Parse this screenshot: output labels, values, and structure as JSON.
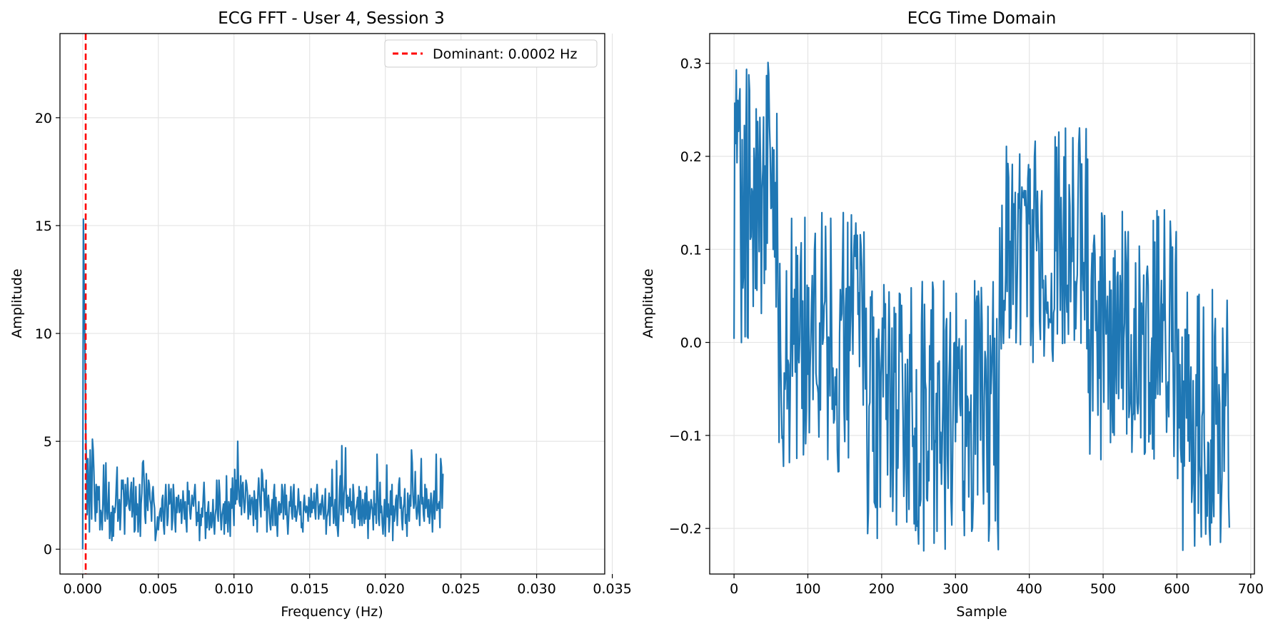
{
  "chart_data": [
    {
      "type": "line",
      "title": "ECG FFT - User 4, Session 3",
      "xlabel": "Frequency (Hz)",
      "ylabel": "Amplitude",
      "xlim": [
        -0.0015,
        0.0345
      ],
      "ylim": [
        -1.15,
        23.9
      ],
      "xticks": [
        0.0,
        0.005,
        0.01,
        0.015,
        0.02,
        0.025,
        0.03,
        0.035
      ],
      "xtick_labels": [
        "0.000",
        "0.005",
        "0.010",
        "0.015",
        "0.020",
        "0.025",
        "0.030",
        "0.035"
      ],
      "yticks": [
        0,
        5,
        10,
        15,
        20
      ],
      "ytick_labels": [
        "0",
        "5",
        "10",
        "15",
        "20"
      ],
      "grid": true,
      "legend": {
        "placement": "top-right",
        "entries": [
          {
            "label": "Dominant: 0.0002 Hz",
            "color": "#ff0000",
            "style": "dashed"
          }
        ]
      },
      "vline": {
        "x": 0.0002,
        "color": "#ff0000",
        "style": "dashed"
      },
      "series": [
        {
          "color": "#1f77b4",
          "x_start": 0.0,
          "x_step": 4.95e-05,
          "values": [
            0.0,
            15.3,
            11.8,
            9.6,
            5.7,
            3.9,
            1.6,
            4.2,
            2.9,
            0.8,
            4.6,
            3.1,
            1.4,
            5.1,
            4.6,
            3.6,
            2.1,
            1.3,
            3.0,
            1.7,
            2.9,
            2.3,
            2.9,
            0.9,
            1.8,
            1.6,
            0.9,
            2.2,
            3.9,
            2.1,
            1.3,
            4.0,
            1.9,
            1.4,
            2.1,
            3.1,
            0.5,
            1.2,
            1.7,
            0.4,
            2.0,
            0.6,
            1.9,
            1.7,
            2.1,
            3.0,
            3.8,
            1.3,
            1.6,
            2.3,
            0.9,
            1.7,
            3.2,
            2.8,
            3.2,
            2.3,
            0.7,
            3.0,
            2.0,
            2.1,
            3.3,
            2.5,
            1.9,
            1.8,
            2.7,
            3.1,
            1.5,
            2.0,
            3.3,
            0.8,
            0.9,
            2.9,
            1.6,
            2.1,
            0.8,
            1.6,
            3.0,
            0.6,
            2.1,
            2.6,
            4.0,
            4.1,
            3.2,
            1.6,
            1.2,
            3.5,
            2.2,
            1.8,
            3.2,
            3.0,
            2.3,
            2.1,
            1.3,
            2.6,
            2.9,
            2.2,
            1.9,
            0.4,
            0.7,
            1.0,
            1.5,
            0.9,
            1.4,
            1.7,
            1.9,
            1.3,
            2.3,
            2.5,
            1.1,
            0.7,
            2.3,
            3.0,
            2.0,
            1.1,
            1.5,
            3.0,
            2.1,
            2.4,
            2.8,
            0.9,
            1.3,
            3.0,
            2.4,
            1.4,
            0.8,
            2.4,
            1.7,
            2.3,
            2.5,
            1.7,
            1.9,
            2.3,
            1.2,
            1.8,
            2.7,
            2.1,
            1.4,
            2.2,
            1.3,
            0.8,
            3.1,
            2.1,
            2.7,
            1.8,
            1.4,
            1.9,
            2.5,
            2.2,
            2.0,
            2.6,
            3.0,
            2.1,
            1.1,
            1.7,
            1.3,
            2.2,
            0.4,
            1.6,
            1.1,
            1.9,
            1.5,
            2.4,
            3.1,
            2.1,
            0.5,
            1.7,
            1.0,
            1.8,
            2.2,
            0.9,
            1.2,
            1.7,
            1.0,
            1.4,
            2.3,
            1.2,
            0.7,
            1.6,
            1.9,
            3.2,
            1.7,
            1.3,
            3.2,
            2.6,
            1.6,
            0.9,
            1.6,
            1.8,
            2.1,
            0.7,
            2.2,
            1.2,
            3.4,
            1.5,
            0.8,
            2.2,
            2.0,
            0.6,
            2.8,
            1.9,
            3.3,
            2.0,
            1.1,
            3.7,
            2.1,
            3.2,
            2.3,
            5.0,
            3.0,
            2.2,
            2.0,
            3.4,
            1.6,
            2.9,
            3.1,
            2.2,
            1.7,
            2.2,
            3.2,
            3.0,
            2.6,
            1.4,
            1.9,
            2.5,
            1.6,
            2.2,
            2.4,
            2.1,
            1.1,
            2.7,
            2.2,
            1.4,
            2.3,
            0.8,
            2.6,
            3.3,
            2.6,
            2.0,
            1.5,
            3.7,
            3.5,
            2.7,
            2.8,
            1.8,
            2.4,
            3.2,
            0.8,
            2.2,
            2.5,
            1.9,
            1.2,
            0.9,
            1.9,
            2.3,
            1.1,
            2.6,
            3.0,
            1.1,
            2.4,
            1.3,
            0.6,
            1.9,
            2.2,
            1.6,
            2.1,
            1.7,
            3.0,
            2.7,
            1.4,
            2.2,
            3.0,
            1.6,
            2.5,
            1.4,
            0.7,
            1.5,
            2.2,
            2.0,
            2.9,
            1.7,
            1.4,
            2.6,
            3.0,
            1.5,
            2.0,
            1.3,
            1.6,
            1.9,
            2.8,
            2.1,
            1.6,
            2.2,
            1.0,
            1.2,
            0.8,
            2.1,
            2.5,
            1.8,
            1.7,
            2.0,
            1.9,
            1.3,
            2.4,
            2.1,
            1.5,
            2.8,
            1.7,
            2.2,
            1.9,
            2.6,
            1.8,
            1.4,
            2.6,
            3.0,
            2.3,
            1.4,
            1.9,
            2.1,
            1.6,
            2.2,
            2.5,
            1.8,
            1.4,
            2.0,
            2.8,
            0.7,
            1.5,
            1.6,
            1.9,
            2.6,
            1.1,
            2.4,
            2.0,
            3.7,
            2.2,
            1.2,
            1.7,
            2.3,
            1.1,
            4.1,
            1.0,
            0.6,
            1.5,
            2.8,
            3.4,
            1.6,
            4.8,
            2.3,
            1.3,
            2.6,
            3.0,
            4.7,
            1.9,
            2.5,
            1.7,
            2.4,
            2.0,
            2.8,
            1.6,
            2.2,
            1.2,
            3.0,
            2.5,
            1.0,
            1.7,
            1.9,
            2.1,
            2.4,
            1.4,
            2.9,
            1.1,
            2.7,
            1.6,
            1.1,
            2.3,
            1.8,
            1.2,
            2.6,
            1.4,
            2.9,
            1.9,
            0.5,
            2.2,
            1.4,
            1.7,
            2.3,
            2.0,
            1.8,
            0.9,
            2.7,
            1.6,
            2.1,
            1.2,
            4.4,
            3.0,
            1.4,
            1.1,
            3.1,
            1.7,
            2.0,
            1.2,
            0.7,
            1.6,
            2.3,
            0.6,
            1.8,
            3.9,
            1.5,
            2.1,
            0.8,
            1.4,
            2.7,
            1.6,
            3.0,
            0.4,
            2.0,
            1.3,
            1.6,
            2.3,
            2.5,
            1.1,
            2.1,
            3.0,
            3.3,
            1.9,
            2.4,
            1.4,
            0.9,
            1.9,
            2.1,
            2.8,
            1.2,
            1.6,
            0.6,
            2.6,
            2.1,
            1.3,
            2.5,
            2.0,
            4.6,
            4.0,
            2.5,
            1.9,
            2.2,
            3.6,
            2.0,
            1.4,
            1.7,
            2.5,
            1.9,
            1.1,
            2.9,
            4.2,
            2.1,
            2.4,
            1.6,
            1.3,
            3.0,
            1.9,
            2.8,
            2.1,
            1.5,
            2.3,
            1.2,
            1.7,
            2.6,
            1.9,
            0.8,
            2.2,
            2.7,
            1.4,
            2.4,
            4.4,
            1.8,
            2.1,
            1.9,
            2.2,
            1.0,
            4.2,
            3.8,
            1.9,
            3.5
          ]
        }
      ]
    },
    {
      "type": "line",
      "title": "ECG Time Domain",
      "xlabel": "Sample",
      "ylabel": "Amplitude",
      "xlim": [
        -33,
        705
      ],
      "ylim": [
        -0.249,
        0.332
      ],
      "xticks": [
        0,
        100,
        200,
        300,
        400,
        500,
        600,
        700
      ],
      "xtick_labels": [
        "0",
        "100",
        "200",
        "300",
        "400",
        "500",
        "600",
        "700"
      ],
      "yticks": [
        -0.2,
        -0.1,
        0.0,
        0.1,
        0.2,
        0.3
      ],
      "ytick_labels": [
        "−0.2",
        "−0.1",
        "0.0",
        "0.1",
        "0.2",
        "0.3"
      ],
      "grid": true,
      "series": [
        {
          "color": "#1f77b4",
          "x_start": 0,
          "x_step": 1,
          "segments": [
            {
              "from": 0,
              "to": 60,
              "lo": -0.01,
              "hi": 0.305,
              "mean": 0.15
            },
            {
              "from": 60,
              "to": 180,
              "lo": -0.14,
              "hi": 0.14,
              "mean": 0.0
            },
            {
              "from": 180,
              "to": 360,
              "lo": -0.225,
              "hi": 0.07,
              "mean": -0.08
            },
            {
              "from": 360,
              "to": 480,
              "lo": -0.035,
              "hi": 0.235,
              "mean": 0.09
            },
            {
              "from": 480,
              "to": 600,
              "lo": -0.13,
              "hi": 0.15,
              "mean": 0.0
            },
            {
              "from": 600,
              "to": 672,
              "lo": -0.225,
              "hi": 0.06,
              "mean": -0.08
            }
          ]
        }
      ]
    }
  ]
}
